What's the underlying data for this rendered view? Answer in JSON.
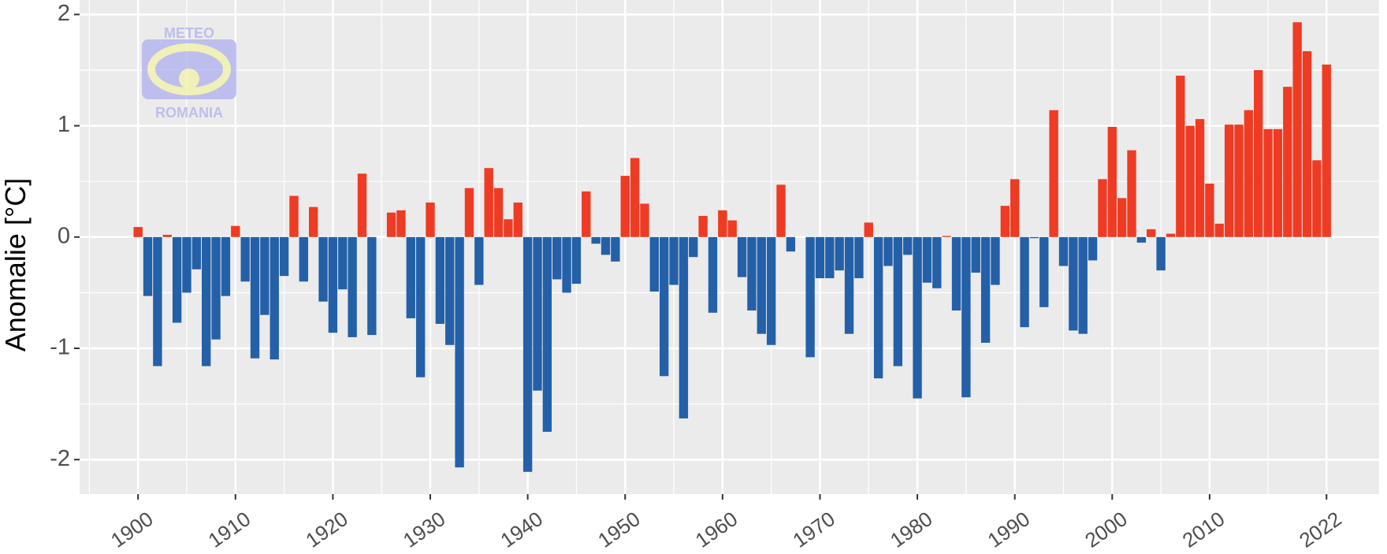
{
  "chart_data": {
    "type": "bar",
    "ylabel": "Anomalie [°C]",
    "logo": {
      "top": "METEO",
      "bottom": "ROMANIA"
    },
    "x": [
      1900,
      1901,
      1902,
      1903,
      1904,
      1905,
      1906,
      1907,
      1908,
      1909,
      1910,
      1911,
      1912,
      1913,
      1914,
      1915,
      1916,
      1917,
      1918,
      1919,
      1920,
      1921,
      1922,
      1923,
      1924,
      1925,
      1926,
      1927,
      1928,
      1929,
      1930,
      1931,
      1932,
      1933,
      1934,
      1935,
      1936,
      1937,
      1938,
      1939,
      1940,
      1941,
      1942,
      1943,
      1944,
      1945,
      1946,
      1947,
      1948,
      1949,
      1950,
      1951,
      1952,
      1953,
      1954,
      1955,
      1956,
      1957,
      1958,
      1959,
      1960,
      1961,
      1962,
      1963,
      1964,
      1965,
      1966,
      1967,
      1968,
      1969,
      1970,
      1971,
      1972,
      1973,
      1974,
      1975,
      1976,
      1977,
      1978,
      1979,
      1980,
      1981,
      1982,
      1983,
      1984,
      1985,
      1986,
      1987,
      1988,
      1989,
      1990,
      1991,
      1992,
      1993,
      1994,
      1995,
      1996,
      1997,
      1998,
      1999,
      2000,
      2001,
      2002,
      2003,
      2004,
      2005,
      2006,
      2007,
      2008,
      2009,
      2010,
      2011,
      2012,
      2013,
      2014,
      2015,
      2016,
      2017,
      2018,
      2019,
      2020,
      2021,
      2022
    ],
    "values": [
      0.09,
      -0.53,
      -1.16,
      0.02,
      -0.77,
      -0.5,
      -0.29,
      -1.16,
      -0.92,
      -0.53,
      0.1,
      -0.4,
      -1.09,
      -0.7,
      -1.1,
      -0.35,
      0.37,
      -0.4,
      0.27,
      -0.58,
      -0.86,
      -0.47,
      -0.9,
      0.57,
      -0.88,
      0,
      0.22,
      0.24,
      -0.73,
      -1.26,
      0.31,
      -0.78,
      -0.97,
      -2.07,
      0.44,
      -0.43,
      0.62,
      0.44,
      0.16,
      0.31,
      -2.11,
      -1.38,
      -1.75,
      -0.38,
      -0.5,
      -0.42,
      0.41,
      -0.06,
      -0.16,
      -0.22,
      0.55,
      0.71,
      0.3,
      -0.49,
      -1.25,
      -0.43,
      -1.63,
      -0.18,
      0.19,
      -0.68,
      0.24,
      0.15,
      -0.36,
      -0.66,
      -0.87,
      -0.97,
      0.47,
      -0.13,
      0,
      -1.08,
      -0.37,
      -0.37,
      -0.3,
      -0.87,
      -0.37,
      0.13,
      -1.27,
      -0.26,
      -1.16,
      -0.16,
      -1.45,
      -0.41,
      -0.46,
      0.01,
      -0.66,
      -1.44,
      -0.32,
      -0.95,
      -0.43,
      0.28,
      0.52,
      -0.81,
      -0.01,
      -0.63,
      1.14,
      -0.26,
      -0.84,
      -0.87,
      -0.21,
      0.52,
      0.99,
      0.35,
      0.78,
      -0.05,
      0.07,
      -0.3,
      0.03,
      1.45,
      1.0,
      1.06,
      0.48,
      0.12,
      1.01,
      1.01,
      1.14,
      1.5,
      0.97,
      0.97,
      1.35,
      1.93,
      1.67,
      0.69,
      1.55
    ],
    "colors": {
      "positive": "#ef3b23",
      "negative": "#2460a8"
    },
    "xlim": [
      1894,
      2027.4
    ],
    "ylim": [
      -2.31,
      2.13
    ],
    "xticks": [
      1900,
      1910,
      1920,
      1930,
      1940,
      1950,
      1960,
      1970,
      1980,
      1990,
      2000,
      2010,
      2022
    ],
    "yticks": [
      -2,
      -1,
      0,
      1,
      2
    ],
    "grid": true,
    "minor_grid": true
  }
}
